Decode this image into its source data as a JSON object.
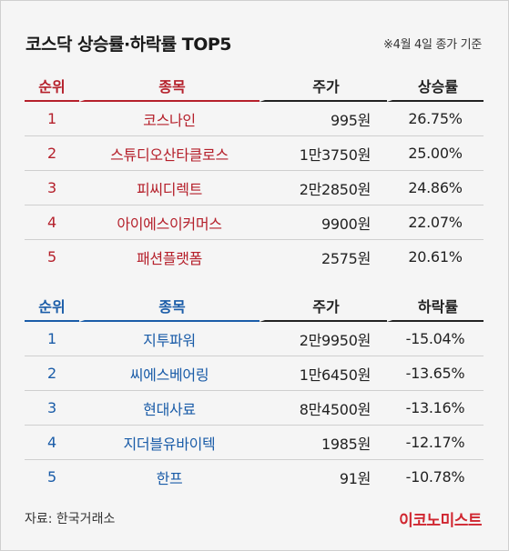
{
  "title": "코스닥 상승률·하락률 TOP5",
  "note": "※4월 4일 종가 기준",
  "gainers": {
    "headers": [
      "순위",
      "종목",
      "주가",
      "상승률"
    ],
    "rows": [
      {
        "rank": "1",
        "name": "코스나인",
        "price": "995원",
        "rate": "26.75%"
      },
      {
        "rank": "2",
        "name": "스튜디오산타클로스",
        "price": "1만3750원",
        "rate": "25.00%"
      },
      {
        "rank": "3",
        "name": "피씨디렉트",
        "price": "2만2850원",
        "rate": "24.86%"
      },
      {
        "rank": "4",
        "name": "아이에스이커머스",
        "price": "9900원",
        "rate": "22.07%"
      },
      {
        "rank": "5",
        "name": "패션플랫폼",
        "price": "2575원",
        "rate": "20.61%"
      }
    ]
  },
  "losers": {
    "headers": [
      "순위",
      "종목",
      "주가",
      "하락률"
    ],
    "rows": [
      {
        "rank": "1",
        "name": "지투파워",
        "price": "2만9950원",
        "rate": "-15.04%"
      },
      {
        "rank": "2",
        "name": "씨에스베어링",
        "price": "1만6450원",
        "rate": "-13.65%"
      },
      {
        "rank": "3",
        "name": "현대사료",
        "price": "8만4500원",
        "rate": "-13.16%"
      },
      {
        "rank": "4",
        "name": "지더블유바이텍",
        "price": "1985원",
        "rate": "-12.17%"
      },
      {
        "rank": "5",
        "name": "한프",
        "price": "91원",
        "rate": "-10.78%"
      }
    ]
  },
  "source": "자료: 한국거래소",
  "brand": "이코노미스트",
  "colors": {
    "gain": "#b5202b",
    "loss": "#1a5ca8",
    "brand": "#d02630"
  }
}
